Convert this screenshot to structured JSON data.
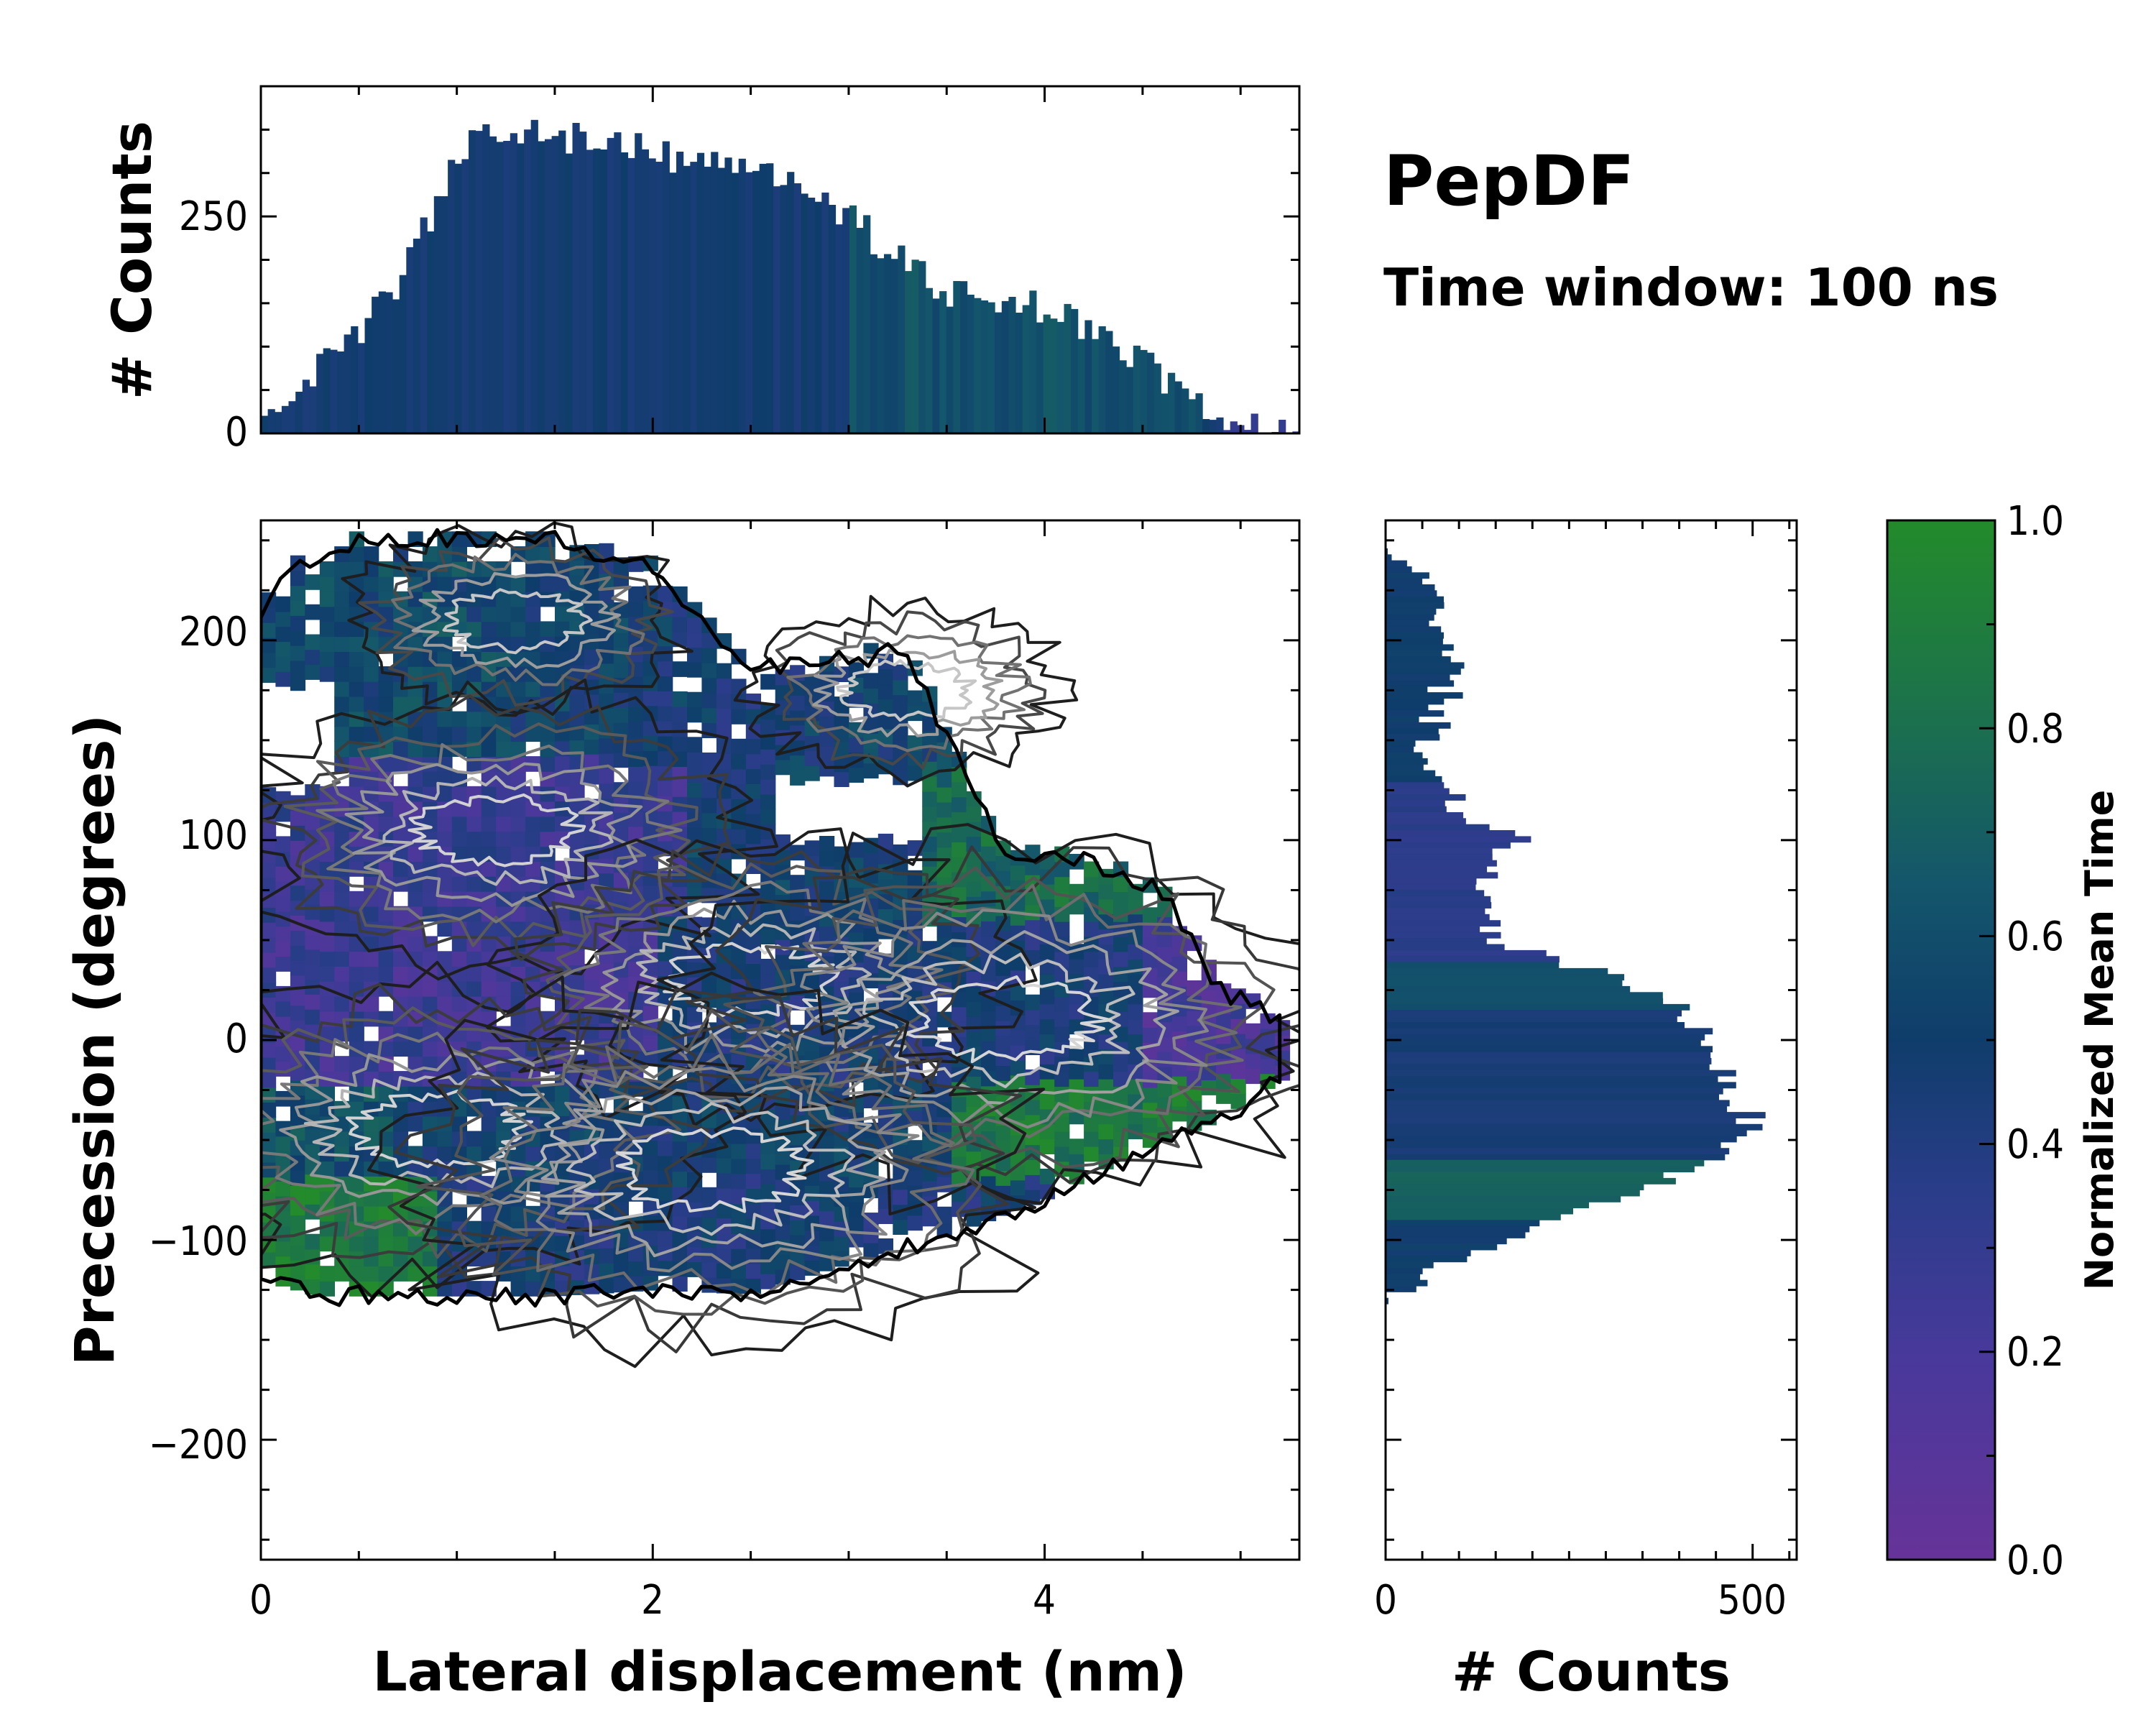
{
  "title": "PepDF",
  "subtitle": "Time window: 100 ns",
  "colors": {
    "cmap_low": "#663399",
    "cmap_mid": "#0f3d6b",
    "cmap_high": "#238b2b",
    "frame": "#000000"
  },
  "chart_data": [
    {
      "id": "main-2d-histogram",
      "type": "heatmap",
      "xlabel": "Lateral displacement (nm)",
      "ylabel": "Precession (degrees)",
      "xlim": [
        0,
        5.3
      ],
      "ylim": [
        -260,
        260
      ],
      "xticks": [
        0,
        2,
        4
      ],
      "yticks": [
        200,
        100,
        0,
        -100,
        -200
      ],
      "xtick_labels": [
        "0",
        "2",
        "4"
      ],
      "ytick_labels": [
        "200",
        "100",
        "0",
        "−100",
        "−200"
      ],
      "colorbar_quantity": "Normalized Mean Time",
      "density_peaks": [
        {
          "x": 1.3,
          "y": 210,
          "weight": 0.45
        },
        {
          "x": 1.2,
          "y": 105,
          "weight": 0.7
        },
        {
          "x": 2.5,
          "y": 30,
          "weight": 0.75
        },
        {
          "x": 3.8,
          "y": 10,
          "weight": 1.0
        },
        {
          "x": 0.9,
          "y": -45,
          "weight": 0.85
        },
        {
          "x": 2.3,
          "y": -65,
          "weight": 1.0
        },
        {
          "x": 3.3,
          "y": 175,
          "weight": 0.35
        }
      ]
    },
    {
      "id": "top-marginal-histogram",
      "type": "bar",
      "ylabel": "# Counts",
      "ylim": [
        0,
        400
      ],
      "yticks": [
        0,
        250
      ],
      "ytick_labels": [
        "0",
        "250"
      ],
      "x_range": [
        0,
        5.3
      ],
      "x_values_nm": [
        0.0,
        0.25,
        0.5,
        0.75,
        1.0,
        1.25,
        1.5,
        1.75,
        2.0,
        2.25,
        2.5,
        2.75,
        3.0,
        3.25,
        3.5,
        3.75,
        4.0,
        4.25,
        4.5,
        4.75,
        5.0,
        5.2
      ],
      "counts": [
        10,
        70,
        120,
        190,
        320,
        355,
        345,
        330,
        325,
        310,
        320,
        290,
        250,
        200,
        165,
        155,
        145,
        120,
        80,
        40,
        8,
        0
      ]
    },
    {
      "id": "right-marginal-histogram",
      "type": "bar",
      "xlabel": "# Counts",
      "xlim": [
        0,
        560
      ],
      "xticks": [
        0,
        500
      ],
      "xtick_labels": [
        "0",
        "500"
      ],
      "y_values_deg": [
        250,
        230,
        210,
        190,
        170,
        150,
        130,
        110,
        100,
        90,
        70,
        50,
        30,
        20,
        10,
        0,
        -10,
        -20,
        -30,
        -40,
        -50,
        -60,
        -70,
        -80,
        -90,
        -100,
        -110,
        -120,
        -130
      ],
      "counts": [
        5,
        45,
        70,
        85,
        80,
        60,
        70,
        120,
        190,
        135,
        140,
        135,
        320,
        390,
        420,
        440,
        460,
        460,
        480,
        500,
        480,
        440,
        380,
        320,
        230,
        150,
        90,
        40,
        5
      ]
    },
    {
      "id": "colorbar",
      "type": "colorbar",
      "label": "Normalized Mean Time",
      "range": [
        0.0,
        1.0
      ],
      "ticks": [
        0.0,
        0.2,
        0.4,
        0.6,
        0.8,
        1.0
      ],
      "tick_labels": [
        "0.0",
        "0.2",
        "0.4",
        "0.6",
        "0.8",
        "1.0"
      ]
    }
  ]
}
